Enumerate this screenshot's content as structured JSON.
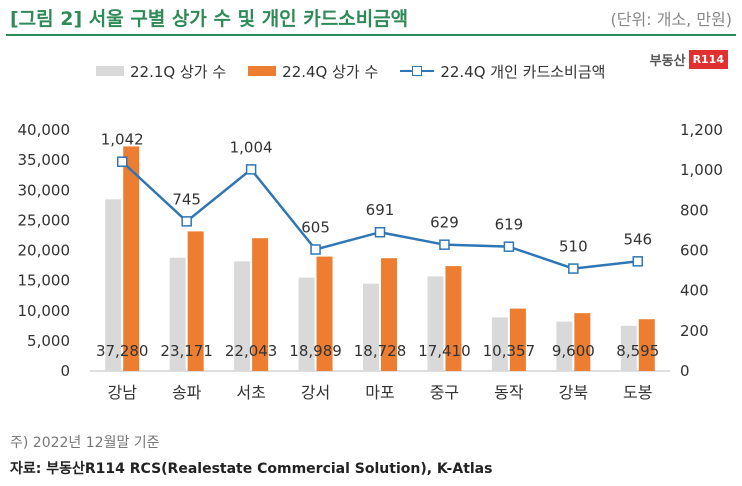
{
  "header": {
    "title": "[그림 2] 서울 구별 상가 수 및 개인 카드소비금액",
    "unit": "(단위: 개소, 만원)",
    "logo_text": "부동산",
    "logo_badge": "R114"
  },
  "footer": {
    "note": "주) 2022년 12월말 기준",
    "source": "자료: 부동산R114 RCS(Realestate Commercial Solution), K-Atlas"
  },
  "colors": {
    "title": "#2e8b57",
    "series_2022_1Q": "#d9d9d9",
    "series_2022_4Q": "#ed7d31",
    "line": "#2f77b4"
  },
  "chart_data": {
    "type": "bar",
    "categories": [
      "강남",
      "송파",
      "서초",
      "강서",
      "마포",
      "중구",
      "동작",
      "강북",
      "도봉"
    ],
    "series": [
      {
        "name": "22.1Q 상가 수",
        "kind": "bar",
        "axis": "left",
        "values": [
          28500,
          18800,
          18200,
          15500,
          14500,
          15700,
          8900,
          8200,
          7500
        ]
      },
      {
        "name": "22.4Q 상가 수",
        "kind": "bar",
        "axis": "left",
        "values": [
          37280,
          23171,
          22043,
          18989,
          18728,
          17410,
          10357,
          9600,
          8595
        ],
        "labels": [
          "37,280",
          "23,171",
          "22,043",
          "18,989",
          "18,728",
          "17,410",
          "10,357",
          "9,600",
          "8,595"
        ]
      },
      {
        "name": "22.4Q 개인 카드소비금액",
        "kind": "line",
        "axis": "right",
        "values": [
          1042,
          745,
          1004,
          605,
          691,
          629,
          619,
          510,
          546
        ],
        "labels": [
          "1,042",
          "745",
          "1,004",
          "605",
          "691",
          "629",
          "619",
          "510",
          "546"
        ]
      }
    ],
    "y_left": {
      "ylim": [
        0,
        40000
      ],
      "ticks": [
        "0",
        "5,000",
        "10,000",
        "15,000",
        "20,000",
        "25,000",
        "30,000",
        "35,000",
        "40,000"
      ]
    },
    "y_right": {
      "ylim": [
        0,
        1200
      ],
      "ticks": [
        "0",
        "200",
        "400",
        "600",
        "800",
        "1,000",
        "1,200"
      ]
    },
    "grid": false,
    "legend": "top"
  }
}
